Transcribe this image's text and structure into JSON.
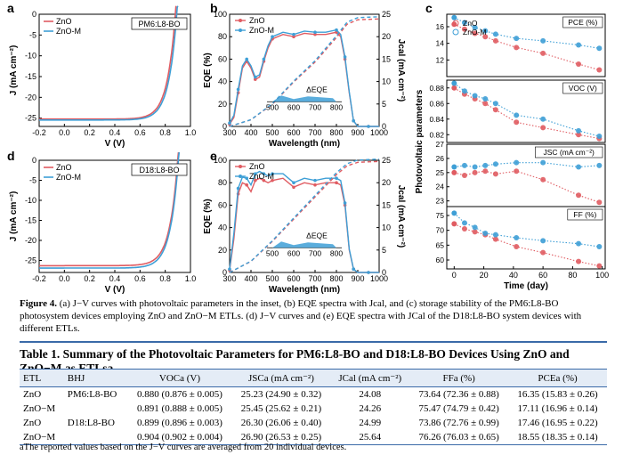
{
  "colors": {
    "zno": "#e05c62",
    "znom": "#3e9fd6",
    "rule": "#3a6aa8"
  },
  "chart_data": [
    {
      "panel": "a",
      "type": "line",
      "inset_label": "PM6:L8-BO",
      "xlabel": "V (V)",
      "ylabel": "J (mA cm⁻²)",
      "xlim": [
        -0.2,
        1.0
      ],
      "ylim": [
        -27,
        0
      ],
      "xticks": [
        "-0.2",
        "0.0",
        "0.2",
        "0.4",
        "0.6",
        "0.8",
        "1.0"
      ],
      "yticks": [
        "0",
        "-5",
        "-10",
        "-15",
        "-20",
        "-25"
      ],
      "series": [
        {
          "name": "ZnO",
          "jsc": 25.23,
          "voc": 0.88
        },
        {
          "name": "ZnO-M",
          "jsc": 25.45,
          "voc": 0.891
        }
      ]
    },
    {
      "panel": "b",
      "type": "line",
      "xlabel": "Wavelength (nm)",
      "ylabel": "EQE (%)",
      "ylabel2": "Jcal (mA cm⁻²)",
      "xlim": [
        300,
        1000
      ],
      "ylim": [
        0,
        100
      ],
      "y2lim": [
        0,
        25
      ],
      "xticks": [
        "300",
        "400",
        "500",
        "600",
        "700",
        "800",
        "900",
        "1000"
      ],
      "yticks": [
        "0",
        "20",
        "40",
        "60",
        "80",
        "100"
      ],
      "y2ticks": [
        "0",
        "5",
        "10",
        "15",
        "20",
        "25"
      ],
      "inset": {
        "label": "ΔEQE",
        "ticks": [
          "500",
          "600",
          "700",
          "800"
        ]
      },
      "legend": [
        "ZnO",
        "ZnO-M"
      ],
      "series": [
        {
          "name": "ZnO",
          "x": [
            300,
            320,
            340,
            360,
            380,
            400,
            420,
            440,
            460,
            480,
            500,
            550,
            600,
            650,
            700,
            750,
            800,
            820,
            840,
            860,
            880,
            900,
            950,
            1000
          ],
          "y": [
            2,
            8,
            30,
            52,
            58,
            52,
            42,
            44,
            58,
            70,
            78,
            82,
            80,
            83,
            82,
            82,
            84,
            80,
            60,
            30,
            5,
            0,
            0,
            0
          ]
        },
        {
          "name": "ZnO-M",
          "x": [
            300,
            320,
            340,
            360,
            380,
            400,
            420,
            440,
            460,
            480,
            500,
            550,
            600,
            650,
            700,
            750,
            800,
            820,
            840,
            860,
            880,
            900,
            950,
            1000
          ],
          "y": [
            3,
            10,
            33,
            54,
            60,
            54,
            44,
            46,
            60,
            72,
            80,
            84,
            82,
            85,
            84,
            84,
            86,
            82,
            62,
            31,
            5,
            0,
            0,
            0
          ]
        }
      ],
      "integrated": {
        "x": [
          300,
          400,
          500,
          600,
          700,
          800,
          850,
          900,
          1000
        ],
        "y": [
          0,
          1.5,
          5,
          10,
          14.5,
          20,
          23,
          24,
          24.2
        ]
      }
    },
    {
      "panel": "c",
      "type": "line",
      "xlabel": "Time (day)",
      "ylabel": "Photovoltaic parameters",
      "xticks": [
        "0",
        "20",
        "40",
        "60",
        "80",
        "100"
      ],
      "legend": [
        "ZnO",
        "ZnO-M"
      ],
      "x": [
        0,
        7,
        14,
        21,
        28,
        42,
        60,
        84,
        98
      ],
      "subplots": [
        {
          "label": "PCE (%)",
          "ylim": [
            10,
            17.5
          ],
          "yticks": [
            "12",
            "14",
            "16"
          ],
          "series": [
            {
              "name": "ZnO",
              "values": [
                16.3,
                15.7,
                15.2,
                14.8,
                14.3,
                13.5,
                12.8,
                11.5,
                10.8
              ]
            },
            {
              "name": "ZnO-M",
              "values": [
                17.1,
                16.5,
                15.9,
                15.5,
                15.1,
                14.6,
                14.3,
                13.8,
                13.4
              ]
            }
          ]
        },
        {
          "label": "VOC (V)",
          "ylim": [
            0.81,
            0.89
          ],
          "yticks": [
            "0.82",
            "0.84",
            "0.86",
            "0.88"
          ],
          "series": [
            {
              "name": "ZnO",
              "values": [
                0.88,
                0.872,
                0.866,
                0.86,
                0.852,
                0.836,
                0.829,
                0.82,
                0.815
              ]
            },
            {
              "name": "ZnO-M",
              "values": [
                0.886,
                0.876,
                0.87,
                0.866,
                0.86,
                0.845,
                0.84,
                0.825,
                0.818
              ]
            }
          ]
        },
        {
          "label": "JSC (mA cm⁻²)",
          "ylim": [
            22.6,
            27
          ],
          "yticks": [
            "23",
            "24",
            "25",
            "26",
            "27"
          ],
          "series": [
            {
              "name": "ZnO",
              "values": [
                25.0,
                24.8,
                25.0,
                25.1,
                24.9,
                25.1,
                24.5,
                23.4,
                22.9
              ]
            },
            {
              "name": "ZnO-M",
              "values": [
                25.4,
                25.5,
                25.4,
                25.5,
                25.6,
                25.7,
                25.7,
                25.4,
                25.5
              ]
            }
          ]
        },
        {
          "label": "FF (%)",
          "ylim": [
            57,
            78
          ],
          "yticks": [
            "60",
            "65",
            "70",
            "75"
          ],
          "series": [
            {
              "name": "ZnO",
              "values": [
                72.2,
                70.5,
                69.5,
                68.5,
                67.0,
                64.5,
                62.5,
                59.5,
                58.0
              ]
            },
            {
              "name": "ZnO-M",
              "values": [
                75.8,
                72.5,
                71.0,
                69.0,
                68.5,
                67.5,
                66.5,
                65.5,
                64.5
              ]
            }
          ]
        }
      ]
    },
    {
      "panel": "d",
      "type": "line",
      "inset_label": "D18:L8-BO",
      "xlabel": "V (V)",
      "ylabel": "J (mA cm⁻²)",
      "xlim": [
        -0.2,
        1.0
      ],
      "ylim": [
        -28,
        0
      ],
      "xticks": [
        "-0.2",
        "0.0",
        "0.2",
        "0.4",
        "0.6",
        "0.8",
        "1.0"
      ],
      "yticks": [
        "0",
        "-5",
        "-10",
        "-15",
        "-20",
        "-25"
      ],
      "series": [
        {
          "name": "ZnO",
          "jsc": 26.3,
          "voc": 0.899
        },
        {
          "name": "ZnO-M",
          "jsc": 26.9,
          "voc": 0.904
        }
      ]
    },
    {
      "panel": "e",
      "type": "line",
      "xlabel": "Wavelength (nm)",
      "ylabel": "EQE (%)",
      "ylabel2": "Jcal (mA cm⁻²)",
      "xlim": [
        300,
        1000
      ],
      "ylim": [
        0,
        100
      ],
      "y2lim": [
        0,
        25
      ],
      "xticks": [
        "300",
        "400",
        "500",
        "600",
        "700",
        "800",
        "900",
        "1000"
      ],
      "yticks": [
        "0",
        "20",
        "40",
        "60",
        "80",
        "100"
      ],
      "y2ticks": [
        "0",
        "5",
        "10",
        "15",
        "20",
        "25"
      ],
      "inset": {
        "label": "ΔEQE",
        "ticks": [
          "500",
          "600",
          "700",
          "800"
        ]
      },
      "legend": [
        "ZnO",
        "ZnO-M"
      ],
      "series": [
        {
          "name": "ZnO",
          "x": [
            300,
            320,
            340,
            360,
            380,
            400,
            420,
            440,
            460,
            480,
            500,
            550,
            600,
            650,
            700,
            750,
            800,
            820,
            840,
            860,
            880,
            900,
            950,
            1000
          ],
          "y": [
            2,
            30,
            70,
            80,
            78,
            72,
            82,
            84,
            82,
            80,
            82,
            84,
            76,
            80,
            78,
            80,
            80,
            78,
            60,
            20,
            3,
            0,
            0,
            0
          ]
        },
        {
          "name": "ZnO-M",
          "x": [
            300,
            320,
            340,
            360,
            380,
            400,
            420,
            440,
            460,
            480,
            500,
            550,
            600,
            650,
            700,
            750,
            800,
            820,
            840,
            860,
            880,
            900,
            950,
            1000
          ],
          "y": [
            3,
            35,
            75,
            85,
            84,
            78,
            88,
            90,
            88,
            86,
            88,
            88,
            80,
            84,
            82,
            84,
            84,
            82,
            62,
            21,
            3,
            0,
            0,
            0
          ]
        }
      ],
      "integrated": {
        "x": [
          300,
          400,
          500,
          600,
          700,
          800,
          850,
          900,
          1000
        ],
        "y": [
          0,
          2.5,
          7,
          12,
          17,
          22,
          24,
          24.8,
          25
        ]
      }
    }
  ],
  "caption": {
    "label": "Figure 4.",
    "text": "(a) J−V curves with photovoltaic parameters in the inset, (b) EQE spectra with Jcal, and (c) storage stability of the PM6:L8-BO photosystem devices employing ZnO and ZnO−M ETLs. (d) J−V curves and (e) EQE spectra with JCal of the D18:L8-BO system devices with different ETLs."
  },
  "table": {
    "title": "Table 1. Summary of the Photovoltaic Parameters for PM6:L8-BO and D18:L8-BO Devices Using ZnO and ZnO−M as ETLsa",
    "headers": [
      "ETL",
      "BHJ",
      "VOCa (V)",
      "JSCa (mA cm⁻²)",
      "JCal (mA cm⁻²)",
      "FFa (%)",
      "PCEa (%)"
    ],
    "rows": [
      [
        "ZnO",
        "PM6:L8-BO",
        "0.880 (0.876 ± 0.005)",
        "25.23 (24.90 ± 0.32)",
        "24.08",
        "73.64 (72.36 ± 0.88)",
        "16.35 (15.83 ± 0.26)"
      ],
      [
        "ZnO−M",
        "",
        "0.891 (0.888 ± 0.005)",
        "25.45 (25.62 ± 0.21)",
        "24.26",
        "75.47 (74.79 ± 0.42)",
        "17.11 (16.96 ± 0.14)"
      ],
      [
        "ZnO",
        "D18:L8-BO",
        "0.899 (0.896 ± 0.003)",
        "26.30 (26.06 ± 0.40)",
        "24.99",
        "73.86 (72.76 ± 0.99)",
        "17.46 (16.95 ± 0.22)"
      ],
      [
        "ZnO−M",
        "",
        "0.904 (0.902 ± 0.004)",
        "26.90 (26.53 ± 0.25)",
        "25.64",
        "76.26 (76.03 ± 0.65)",
        "18.55 (18.35 ± 0.14)"
      ]
    ],
    "footnote": "aThe reported values based on the J−V curves are averaged from 20 individual devices."
  }
}
